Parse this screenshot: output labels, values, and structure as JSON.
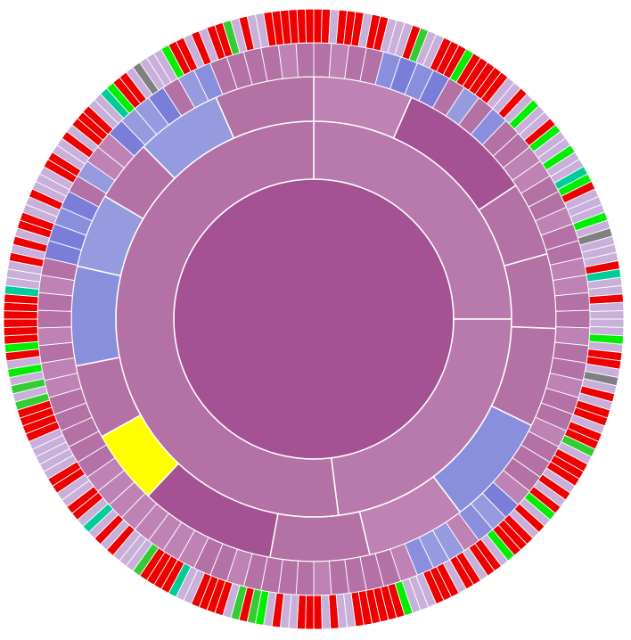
{
  "chart_data": {
    "type": "sunburst",
    "title": "",
    "legend": "none",
    "grid": false,
    "colors": {
      "root": "#a45293",
      "magenta_a": "#b471a6",
      "magenta_b": "#be82b4",
      "magenta_dark": "#a45293",
      "blue_light": "#969be0",
      "blue_mid": "#8a8fdd",
      "blue_dark": "#7a7ed8",
      "yellow": "#ffff00",
      "red": "#ee0000",
      "lilac": "#c8b0da",
      "green": "#33cc33",
      "lime": "#00ee00",
      "grey": "#808080",
      "teal": "#00cc99"
    },
    "ring1": [
      {
        "value": 25,
        "color": "#b87aad"
      },
      {
        "value": 23,
        "color": "#b87aad"
      },
      {
        "value": 52,
        "color": "#b471a6"
      }
    ],
    "ring2": [
      {
        "value": 8,
        "color": "#be82b4"
      },
      {
        "value": 11,
        "color": "#a45293"
      },
      {
        "value": 6,
        "color": "#b471a6"
      },
      {
        "value": 6,
        "color": "#b471a6"
      },
      {
        "value": 8,
        "color": "#b471a6"
      },
      {
        "value": 9,
        "color": "#8a8fdd"
      },
      {
        "value": 8,
        "color": "#be82b4"
      },
      {
        "value": 8,
        "color": "#b471a6"
      },
      {
        "value": 11,
        "color": "#a45293"
      },
      {
        "value": 6,
        "color": "#ffff00"
      },
      {
        "value": 6,
        "color": "#b471a6"
      },
      {
        "value": 8,
        "color": "#8a8fdd"
      },
      {
        "value": 6,
        "color": "#969be0"
      },
      {
        "value": 5,
        "color": "#b471a6"
      },
      {
        "value": 7,
        "color": "#969be0"
      },
      {
        "value": 8,
        "color": "#b471a6"
      }
    ]
  }
}
